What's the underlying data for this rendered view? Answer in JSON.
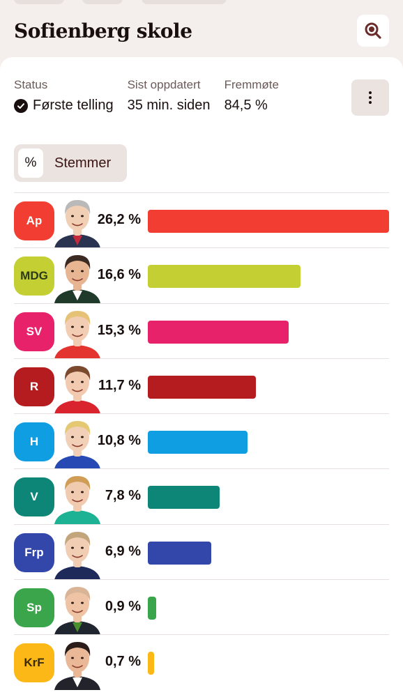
{
  "header": {
    "title": "Sofienberg skole",
    "search_icon": "search-icon"
  },
  "status": {
    "status_label": "Status",
    "status_value": "Første telling",
    "updated_label": "Sist oppdatert",
    "updated_value": "35 min. siden",
    "turnout_label": "Fremmøte",
    "turnout_value": "84,5 %"
  },
  "toggle": {
    "percent_label": "%",
    "votes_label": "Stemmer"
  },
  "results": [
    {
      "party": "Ap",
      "percent_label": "26,2 %",
      "value": 26.2,
      "color": "#f23e32",
      "text_color": "#ffffff",
      "skin": "#f1cfb4",
      "hair": "#b9b9b9",
      "shirt": "#2a3350",
      "tie": "#c2293b"
    },
    {
      "party": "MDG",
      "percent_label": "16,6 %",
      "value": 16.6,
      "color": "#c4cf34",
      "text_color": "#2c3b16",
      "skin": "#e8b592",
      "hair": "#3a2a22",
      "shirt": "#1f3a2a",
      "tie": "#ffffff"
    },
    {
      "party": "SV",
      "percent_label": "15,3 %",
      "value": 15.3,
      "color": "#e8216b",
      "text_color": "#ffffff",
      "skin": "#f2cdb3",
      "hair": "#e6c277",
      "shirt": "#e3342f",
      "tie": "#e3342f"
    },
    {
      "party": "R",
      "percent_label": "11,7 %",
      "value": 11.7,
      "color": "#b51c20",
      "text_color": "#ffffff",
      "skin": "#f2cab0",
      "hair": "#7b4a2e",
      "shirt": "#d9232d",
      "tie": "#d9232d"
    },
    {
      "party": "H",
      "percent_label": "10,8 %",
      "value": 10.8,
      "color": "#0f9ee2",
      "text_color": "#ffffff",
      "skin": "#f2d0b8",
      "hair": "#e5c872",
      "shirt": "#2649b4",
      "tie": "#2649b4"
    },
    {
      "party": "V",
      "percent_label": "7,8 %",
      "value": 7.8,
      "color": "#0d8577",
      "text_color": "#ffffff",
      "skin": "#f1cbb0",
      "hair": "#cf9d55",
      "shirt": "#1db294",
      "tie": "#1db294"
    },
    {
      "party": "Frp",
      "percent_label": "6,9 %",
      "value": 6.9,
      "color": "#3346aa",
      "text_color": "#ffffff",
      "skin": "#f1cdb3",
      "hair": "#c3a57c",
      "shirt": "#1e2a5a",
      "tie": "#1e2a5a"
    },
    {
      "party": "Sp",
      "percent_label": "0,9 %",
      "value": 0.9,
      "color": "#3aa54a",
      "text_color": "#ffffff",
      "skin": "#eec4a5",
      "hair": "#d9b497",
      "shirt": "#1f2630",
      "tie": "#4a8f2e"
    },
    {
      "party": "KrF",
      "percent_label": "0,7 %",
      "value": 0.7,
      "color": "#fbb817",
      "text_color": "#3a2b05",
      "skin": "#eab896",
      "hair": "#2a1c18",
      "shirt": "#22232b",
      "tie": "#ffffff"
    }
  ]
}
